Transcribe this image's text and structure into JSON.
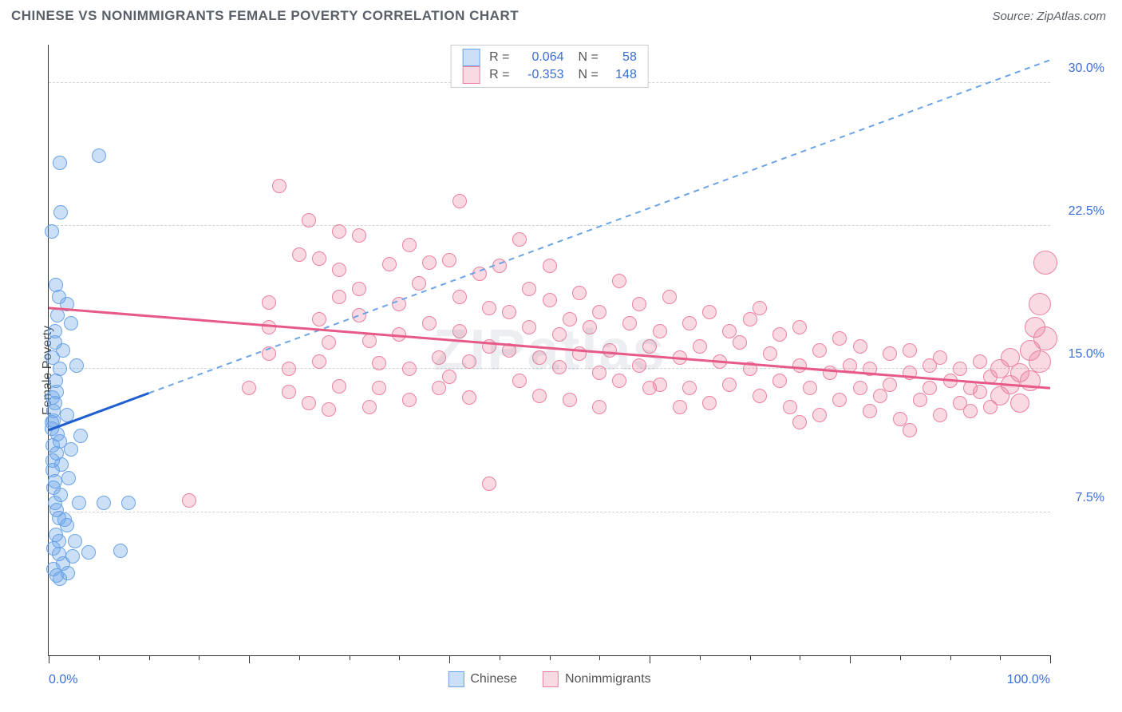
{
  "header": {
    "title": "CHINESE VS NONIMMIGRANTS FEMALE POVERTY CORRELATION CHART",
    "source_label": "Source: ZipAtlas.com"
  },
  "chart": {
    "type": "scatter",
    "ylabel": "Female Poverty",
    "watermark": "ZIPatlas",
    "xlim": [
      0,
      100
    ],
    "ylim": [
      0,
      32
    ],
    "yticks": [
      {
        "v": 7.5,
        "label": "7.5%"
      },
      {
        "v": 15.0,
        "label": "15.0%"
      },
      {
        "v": 22.5,
        "label": "22.5%"
      },
      {
        "v": 30.0,
        "label": "30.0%"
      }
    ],
    "xticks_major": [
      0,
      20,
      40,
      60,
      80,
      100
    ],
    "xticks_minor5": [
      5,
      10,
      15,
      25,
      30,
      35,
      45,
      50,
      55,
      65,
      70,
      75,
      85,
      90,
      95
    ],
    "x_axis_labels": {
      "min": "0.0%",
      "max": "100.0%"
    },
    "grid_color": "#d0d4d8",
    "background_color": "#ffffff",
    "point_radius": 9,
    "point_radius_large": 12,
    "series": [
      {
        "key": "chinese",
        "name": "Chinese",
        "fill_color": "rgba(107,164,231,0.35)",
        "stroke_color": "#6ba4e7",
        "reg_solid_color": "#1f5fd0",
        "reg_dash_color": "#6ba4e7",
        "R": "0.064",
        "N": "58",
        "reg_y_at_x0": 11.8,
        "reg_y_at_x100": 31.2,
        "solid_x_end": 10,
        "points": [
          {
            "x": 0.3,
            "y": 22.2
          },
          {
            "x": 1.1,
            "y": 25.8
          },
          {
            "x": 5.0,
            "y": 26.2
          },
          {
            "x": 1.2,
            "y": 23.2
          },
          {
            "x": 1.0,
            "y": 18.8
          },
          {
            "x": 1.8,
            "y": 18.4
          },
          {
            "x": 2.2,
            "y": 17.4
          },
          {
            "x": 0.6,
            "y": 17.0
          },
          {
            "x": 2.8,
            "y": 15.2
          },
          {
            "x": 1.4,
            "y": 16.0
          },
          {
            "x": 0.4,
            "y": 15.6
          },
          {
            "x": 0.8,
            "y": 13.8
          },
          {
            "x": 0.5,
            "y": 12.8
          },
          {
            "x": 0.5,
            "y": 12.3
          },
          {
            "x": 1.8,
            "y": 12.6
          },
          {
            "x": 0.3,
            "y": 11.9
          },
          {
            "x": 3.2,
            "y": 11.5
          },
          {
            "x": 1.1,
            "y": 11.2
          },
          {
            "x": 0.8,
            "y": 10.6
          },
          {
            "x": 0.4,
            "y": 10.2
          },
          {
            "x": 0.4,
            "y": 9.7
          },
          {
            "x": 0.6,
            "y": 9.1
          },
          {
            "x": 2.0,
            "y": 9.3
          },
          {
            "x": 1.2,
            "y": 8.4
          },
          {
            "x": 0.6,
            "y": 8.0
          },
          {
            "x": 3.0,
            "y": 8.0
          },
          {
            "x": 5.5,
            "y": 8.0
          },
          {
            "x": 8.0,
            "y": 8.0
          },
          {
            "x": 1.0,
            "y": 7.2
          },
          {
            "x": 1.8,
            "y": 6.8
          },
          {
            "x": 0.7,
            "y": 6.3
          },
          {
            "x": 2.6,
            "y": 6.0
          },
          {
            "x": 0.5,
            "y": 5.6
          },
          {
            "x": 1.0,
            "y": 5.3
          },
          {
            "x": 2.4,
            "y": 5.2
          },
          {
            "x": 1.4,
            "y": 4.8
          },
          {
            "x": 4.0,
            "y": 5.4
          },
          {
            "x": 7.2,
            "y": 5.5
          },
          {
            "x": 1.9,
            "y": 4.3
          },
          {
            "x": 1.1,
            "y": 4.0
          },
          {
            "x": 0.8,
            "y": 4.2
          },
          {
            "x": 0.5,
            "y": 4.5
          },
          {
            "x": 0.9,
            "y": 11.6
          },
          {
            "x": 0.6,
            "y": 13.2
          },
          {
            "x": 0.7,
            "y": 14.4
          },
          {
            "x": 0.4,
            "y": 11.0
          },
          {
            "x": 0.6,
            "y": 16.4
          },
          {
            "x": 0.9,
            "y": 17.8
          },
          {
            "x": 0.3,
            "y": 12.2
          },
          {
            "x": 1.3,
            "y": 10.0
          },
          {
            "x": 0.5,
            "y": 8.8
          },
          {
            "x": 0.8,
            "y": 7.6
          },
          {
            "x": 1.6,
            "y": 7.1
          },
          {
            "x": 2.2,
            "y": 10.8
          },
          {
            "x": 1.0,
            "y": 6.0
          },
          {
            "x": 1.1,
            "y": 15.0
          },
          {
            "x": 0.4,
            "y": 13.5
          },
          {
            "x": 0.7,
            "y": 19.4
          }
        ]
      },
      {
        "key": "nonimmigrants",
        "name": "Nonimmigrants",
        "fill_color": "rgba(236,130,160,0.30)",
        "stroke_color": "#ec82a0",
        "reg_solid_color": "#e75a88",
        "R": "-0.353",
        "N": "148",
        "reg_y_at_x0": 18.2,
        "reg_y_at_x100": 14.0,
        "solid_x_end": 100,
        "points": [
          {
            "x": 23,
            "y": 24.6
          },
          {
            "x": 26,
            "y": 22.8
          },
          {
            "x": 25,
            "y": 21.0
          },
          {
            "x": 22,
            "y": 18.5
          },
          {
            "x": 22,
            "y": 17.2
          },
          {
            "x": 22,
            "y": 15.8
          },
          {
            "x": 24,
            "y": 15.0
          },
          {
            "x": 24,
            "y": 13.8
          },
          {
            "x": 27,
            "y": 20.8
          },
          {
            "x": 29,
            "y": 20.2
          },
          {
            "x": 29,
            "y": 18.8
          },
          {
            "x": 27,
            "y": 17.6
          },
          {
            "x": 28,
            "y": 16.4
          },
          {
            "x": 27,
            "y": 15.4
          },
          {
            "x": 29,
            "y": 14.1
          },
          {
            "x": 28,
            "y": 12.9
          },
          {
            "x": 31,
            "y": 22.0
          },
          {
            "x": 31,
            "y": 19.2
          },
          {
            "x": 31,
            "y": 17.8
          },
          {
            "x": 32,
            "y": 16.5
          },
          {
            "x": 33,
            "y": 15.3
          },
          {
            "x": 33,
            "y": 14.0
          },
          {
            "x": 34,
            "y": 20.5
          },
          {
            "x": 35,
            "y": 18.4
          },
          {
            "x": 35,
            "y": 16.8
          },
          {
            "x": 36,
            "y": 15.0
          },
          {
            "x": 36,
            "y": 13.4
          },
          {
            "x": 37,
            "y": 19.5
          },
          {
            "x": 38,
            "y": 20.6
          },
          {
            "x": 38,
            "y": 17.4
          },
          {
            "x": 39,
            "y": 15.6
          },
          {
            "x": 39,
            "y": 14.0
          },
          {
            "x": 41,
            "y": 23.8
          },
          {
            "x": 40,
            "y": 20.7
          },
          {
            "x": 41,
            "y": 18.8
          },
          {
            "x": 41,
            "y": 17.0
          },
          {
            "x": 42,
            "y": 15.4
          },
          {
            "x": 42,
            "y": 13.5
          },
          {
            "x": 43,
            "y": 20.0
          },
          {
            "x": 44,
            "y": 18.2
          },
          {
            "x": 44,
            "y": 16.2
          },
          {
            "x": 44,
            "y": 9.0
          },
          {
            "x": 45,
            "y": 20.4
          },
          {
            "x": 46,
            "y": 18.0
          },
          {
            "x": 46,
            "y": 16.0
          },
          {
            "x": 47,
            "y": 14.4
          },
          {
            "x": 48,
            "y": 19.2
          },
          {
            "x": 48,
            "y": 17.2
          },
          {
            "x": 49,
            "y": 15.6
          },
          {
            "x": 49,
            "y": 13.6
          },
          {
            "x": 50,
            "y": 18.6
          },
          {
            "x": 51,
            "y": 16.8
          },
          {
            "x": 51,
            "y": 15.1
          },
          {
            "x": 52,
            "y": 17.6
          },
          {
            "x": 53,
            "y": 19.0
          },
          {
            "x": 53,
            "y": 15.8
          },
          {
            "x": 54,
            "y": 17.2
          },
          {
            "x": 55,
            "y": 14.8
          },
          {
            "x": 55,
            "y": 18.0
          },
          {
            "x": 56,
            "y": 16.0
          },
          {
            "x": 57,
            "y": 19.6
          },
          {
            "x": 57,
            "y": 14.4
          },
          {
            "x": 58,
            "y": 17.4
          },
          {
            "x": 59,
            "y": 15.2
          },
          {
            "x": 59,
            "y": 18.4
          },
          {
            "x": 60,
            "y": 16.2
          },
          {
            "x": 61,
            "y": 14.2
          },
          {
            "x": 61,
            "y": 17.0
          },
          {
            "x": 62,
            "y": 18.8
          },
          {
            "x": 63,
            "y": 15.6
          },
          {
            "x": 64,
            "y": 17.4
          },
          {
            "x": 64,
            "y": 14.0
          },
          {
            "x": 65,
            "y": 16.2
          },
          {
            "x": 66,
            "y": 18.0
          },
          {
            "x": 66,
            "y": 13.2
          },
          {
            "x": 67,
            "y": 15.4
          },
          {
            "x": 68,
            "y": 17.0
          },
          {
            "x": 68,
            "y": 14.2
          },
          {
            "x": 69,
            "y": 16.4
          },
          {
            "x": 70,
            "y": 15.0
          },
          {
            "x": 70,
            "y": 17.6
          },
          {
            "x": 71,
            "y": 13.6
          },
          {
            "x": 71,
            "y": 18.2
          },
          {
            "x": 72,
            "y": 15.8
          },
          {
            "x": 73,
            "y": 14.4
          },
          {
            "x": 73,
            "y": 16.8
          },
          {
            "x": 74,
            "y": 13.0
          },
          {
            "x": 75,
            "y": 15.2
          },
          {
            "x": 75,
            "y": 17.2
          },
          {
            "x": 76,
            "y": 14.0
          },
          {
            "x": 77,
            "y": 16.0
          },
          {
            "x": 77,
            "y": 12.6
          },
          {
            "x": 78,
            "y": 14.8
          },
          {
            "x": 79,
            "y": 16.6
          },
          {
            "x": 79,
            "y": 13.4
          },
          {
            "x": 80,
            "y": 15.2
          },
          {
            "x": 81,
            "y": 14.0
          },
          {
            "x": 81,
            "y": 16.2
          },
          {
            "x": 82,
            "y": 12.8
          },
          {
            "x": 82,
            "y": 15.0
          },
          {
            "x": 83,
            "y": 13.6
          },
          {
            "x": 84,
            "y": 15.8
          },
          {
            "x": 84,
            "y": 14.2
          },
          {
            "x": 85,
            "y": 12.4
          },
          {
            "x": 86,
            "y": 14.8
          },
          {
            "x": 86,
            "y": 16.0
          },
          {
            "x": 87,
            "y": 13.4
          },
          {
            "x": 88,
            "y": 15.2
          },
          {
            "x": 88,
            "y": 14.0
          },
          {
            "x": 89,
            "y": 12.6
          },
          {
            "x": 89,
            "y": 15.6
          },
          {
            "x": 90,
            "y": 14.4
          },
          {
            "x": 91,
            "y": 13.2
          },
          {
            "x": 91,
            "y": 15.0
          },
          {
            "x": 92,
            "y": 14.0
          },
          {
            "x": 92,
            "y": 12.8
          },
          {
            "x": 93,
            "y": 15.4
          },
          {
            "x": 93,
            "y": 13.8
          },
          {
            "x": 94,
            "y": 14.6
          },
          {
            "x": 94,
            "y": 13.0
          },
          {
            "x": 95,
            "y": 15.0,
            "r": 12
          },
          {
            "x": 95,
            "y": 13.6,
            "r": 12
          },
          {
            "x": 96,
            "y": 14.2,
            "r": 12
          },
          {
            "x": 96,
            "y": 15.6,
            "r": 12
          },
          {
            "x": 97,
            "y": 13.2,
            "r": 12
          },
          {
            "x": 97,
            "y": 14.8,
            "r": 12
          },
          {
            "x": 98,
            "y": 16.0,
            "r": 13
          },
          {
            "x": 98,
            "y": 14.4,
            "r": 13
          },
          {
            "x": 98.5,
            "y": 17.2,
            "r": 13
          },
          {
            "x": 99,
            "y": 15.4,
            "r": 14
          },
          {
            "x": 99,
            "y": 18.4,
            "r": 14
          },
          {
            "x": 99.5,
            "y": 16.6,
            "r": 15
          },
          {
            "x": 99.5,
            "y": 20.6,
            "r": 15
          },
          {
            "x": 14,
            "y": 8.1
          },
          {
            "x": 32,
            "y": 13.0
          },
          {
            "x": 47,
            "y": 21.8
          },
          {
            "x": 52,
            "y": 13.4
          },
          {
            "x": 63,
            "y": 13.0
          },
          {
            "x": 75,
            "y": 12.2
          },
          {
            "x": 86,
            "y": 11.8
          },
          {
            "x": 29,
            "y": 22.2
          },
          {
            "x": 36,
            "y": 21.5
          },
          {
            "x": 20,
            "y": 14.0
          },
          {
            "x": 26,
            "y": 13.2
          },
          {
            "x": 40,
            "y": 14.6
          },
          {
            "x": 50,
            "y": 20.4
          },
          {
            "x": 55,
            "y": 13.0
          },
          {
            "x": 60,
            "y": 14.0
          }
        ]
      }
    ]
  }
}
